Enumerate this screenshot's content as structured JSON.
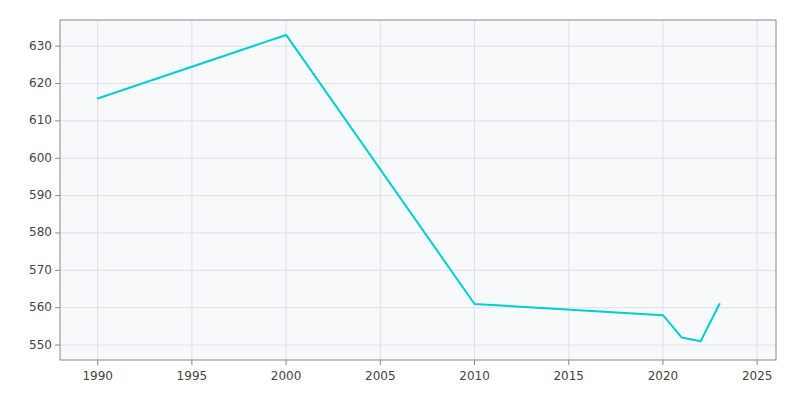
{
  "chart_data": {
    "type": "line",
    "x": [
      1990,
      2000,
      2010,
      2020,
      2021,
      2022,
      2023
    ],
    "values": [
      616,
      633,
      561,
      558,
      552,
      551,
      561
    ],
    "color": "#00CED1",
    "xlim": [
      1988,
      2026
    ],
    "ylim": [
      546,
      637
    ],
    "xticks": [
      1990,
      1995,
      2000,
      2005,
      2010,
      2015,
      2020,
      2025
    ],
    "yticks": [
      550,
      560,
      570,
      580,
      590,
      600,
      610,
      620,
      630
    ],
    "grid": true
  }
}
